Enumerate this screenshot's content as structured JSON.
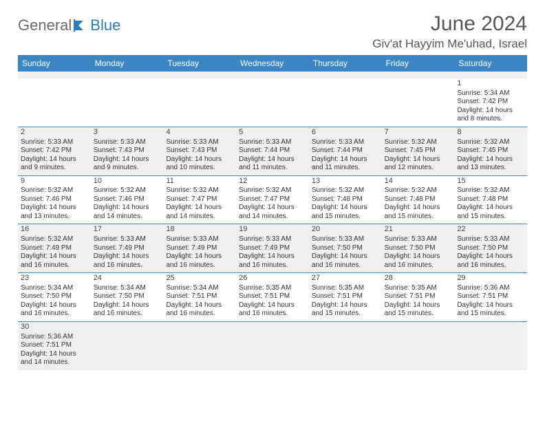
{
  "brand": {
    "part1": "General",
    "part2": "Blue"
  },
  "title": "June 2024",
  "location": "Giv'at Hayyim Me'uhad, Israel",
  "colors": {
    "header_bg": "#3d86c6",
    "header_text": "#ffffff",
    "shade_bg": "#f0f0f0",
    "rule": "#3d86c6",
    "title_text": "#555555",
    "body_text": "#333333"
  },
  "day_names": [
    "Sunday",
    "Monday",
    "Tuesday",
    "Wednesday",
    "Thursday",
    "Friday",
    "Saturday"
  ],
  "weeks": [
    [
      null,
      null,
      null,
      null,
      null,
      null,
      {
        "n": "1",
        "sr": "Sunrise: 5:34 AM",
        "ss": "Sunset: 7:42 PM",
        "dl": "Daylight: 14 hours and 8 minutes."
      }
    ],
    [
      {
        "n": "2",
        "sr": "Sunrise: 5:33 AM",
        "ss": "Sunset: 7:42 PM",
        "dl": "Daylight: 14 hours and 9 minutes."
      },
      {
        "n": "3",
        "sr": "Sunrise: 5:33 AM",
        "ss": "Sunset: 7:43 PM",
        "dl": "Daylight: 14 hours and 9 minutes."
      },
      {
        "n": "4",
        "sr": "Sunrise: 5:33 AM",
        "ss": "Sunset: 7:43 PM",
        "dl": "Daylight: 14 hours and 10 minutes."
      },
      {
        "n": "5",
        "sr": "Sunrise: 5:33 AM",
        "ss": "Sunset: 7:44 PM",
        "dl": "Daylight: 14 hours and 11 minutes."
      },
      {
        "n": "6",
        "sr": "Sunrise: 5:33 AM",
        "ss": "Sunset: 7:44 PM",
        "dl": "Daylight: 14 hours and 11 minutes."
      },
      {
        "n": "7",
        "sr": "Sunrise: 5:32 AM",
        "ss": "Sunset: 7:45 PM",
        "dl": "Daylight: 14 hours and 12 minutes."
      },
      {
        "n": "8",
        "sr": "Sunrise: 5:32 AM",
        "ss": "Sunset: 7:45 PM",
        "dl": "Daylight: 14 hours and 13 minutes."
      }
    ],
    [
      {
        "n": "9",
        "sr": "Sunrise: 5:32 AM",
        "ss": "Sunset: 7:46 PM",
        "dl": "Daylight: 14 hours and 13 minutes."
      },
      {
        "n": "10",
        "sr": "Sunrise: 5:32 AM",
        "ss": "Sunset: 7:46 PM",
        "dl": "Daylight: 14 hours and 14 minutes."
      },
      {
        "n": "11",
        "sr": "Sunrise: 5:32 AM",
        "ss": "Sunset: 7:47 PM",
        "dl": "Daylight: 14 hours and 14 minutes."
      },
      {
        "n": "12",
        "sr": "Sunrise: 5:32 AM",
        "ss": "Sunset: 7:47 PM",
        "dl": "Daylight: 14 hours and 14 minutes."
      },
      {
        "n": "13",
        "sr": "Sunrise: 5:32 AM",
        "ss": "Sunset: 7:48 PM",
        "dl": "Daylight: 14 hours and 15 minutes."
      },
      {
        "n": "14",
        "sr": "Sunrise: 5:32 AM",
        "ss": "Sunset: 7:48 PM",
        "dl": "Daylight: 14 hours and 15 minutes."
      },
      {
        "n": "15",
        "sr": "Sunrise: 5:32 AM",
        "ss": "Sunset: 7:48 PM",
        "dl": "Daylight: 14 hours and 15 minutes."
      }
    ],
    [
      {
        "n": "16",
        "sr": "Sunrise: 5:32 AM",
        "ss": "Sunset: 7:49 PM",
        "dl": "Daylight: 14 hours and 16 minutes."
      },
      {
        "n": "17",
        "sr": "Sunrise: 5:33 AM",
        "ss": "Sunset: 7:49 PM",
        "dl": "Daylight: 14 hours and 16 minutes."
      },
      {
        "n": "18",
        "sr": "Sunrise: 5:33 AM",
        "ss": "Sunset: 7:49 PM",
        "dl": "Daylight: 14 hours and 16 minutes."
      },
      {
        "n": "19",
        "sr": "Sunrise: 5:33 AM",
        "ss": "Sunset: 7:49 PM",
        "dl": "Daylight: 14 hours and 16 minutes."
      },
      {
        "n": "20",
        "sr": "Sunrise: 5:33 AM",
        "ss": "Sunset: 7:50 PM",
        "dl": "Daylight: 14 hours and 16 minutes."
      },
      {
        "n": "21",
        "sr": "Sunrise: 5:33 AM",
        "ss": "Sunset: 7:50 PM",
        "dl": "Daylight: 14 hours and 16 minutes."
      },
      {
        "n": "22",
        "sr": "Sunrise: 5:33 AM",
        "ss": "Sunset: 7:50 PM",
        "dl": "Daylight: 14 hours and 16 minutes."
      }
    ],
    [
      {
        "n": "23",
        "sr": "Sunrise: 5:34 AM",
        "ss": "Sunset: 7:50 PM",
        "dl": "Daylight: 14 hours and 16 minutes."
      },
      {
        "n": "24",
        "sr": "Sunrise: 5:34 AM",
        "ss": "Sunset: 7:50 PM",
        "dl": "Daylight: 14 hours and 16 minutes."
      },
      {
        "n": "25",
        "sr": "Sunrise: 5:34 AM",
        "ss": "Sunset: 7:51 PM",
        "dl": "Daylight: 14 hours and 16 minutes."
      },
      {
        "n": "26",
        "sr": "Sunrise: 5:35 AM",
        "ss": "Sunset: 7:51 PM",
        "dl": "Daylight: 14 hours and 16 minutes."
      },
      {
        "n": "27",
        "sr": "Sunrise: 5:35 AM",
        "ss": "Sunset: 7:51 PM",
        "dl": "Daylight: 14 hours and 15 minutes."
      },
      {
        "n": "28",
        "sr": "Sunrise: 5:35 AM",
        "ss": "Sunset: 7:51 PM",
        "dl": "Daylight: 14 hours and 15 minutes."
      },
      {
        "n": "29",
        "sr": "Sunrise: 5:36 AM",
        "ss": "Sunset: 7:51 PM",
        "dl": "Daylight: 14 hours and 15 minutes."
      }
    ],
    [
      {
        "n": "30",
        "sr": "Sunrise: 5:36 AM",
        "ss": "Sunset: 7:51 PM",
        "dl": "Daylight: 14 hours and 14 minutes."
      },
      null,
      null,
      null,
      null,
      null,
      null
    ]
  ]
}
